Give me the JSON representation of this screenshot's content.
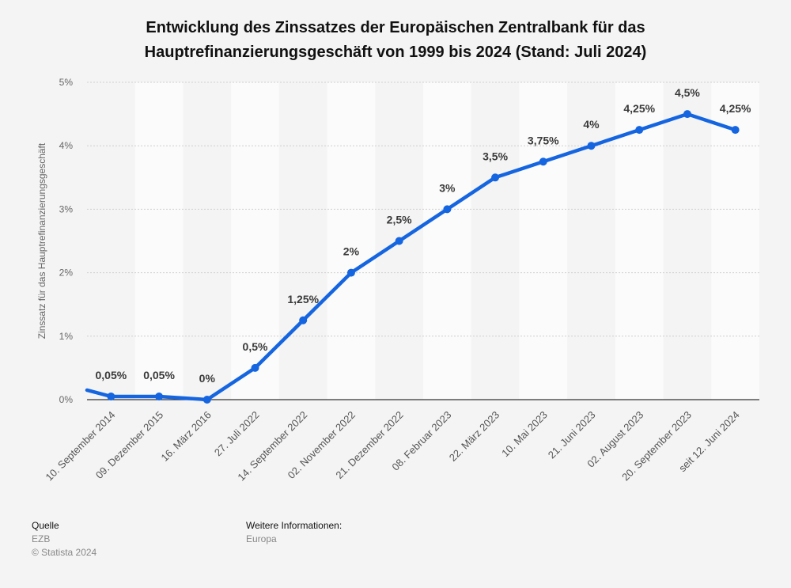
{
  "title_line1": "Entwicklung des Zinssatzes der Europäischen Zentralbank für das",
  "title_line2": "Hauptrefinanzierungsgeschäft von 1999 bis 2024 (Stand: Juli 2024)",
  "footer": {
    "source_label": "Quelle",
    "source_value": "EZB",
    "copyright": "© Statista 2024",
    "info_label": "Weitere Informationen:",
    "info_value": "Europa"
  },
  "colors": {
    "line": "#1565e0",
    "label": "#3a3a3a",
    "axis": "#999999",
    "band": "#fbfbfb"
  },
  "chart_data": {
    "type": "line",
    "title": "Entwicklung des Zinssatzes der Europäischen Zentralbank für das Hauptrefinanzierungsgeschäft von 1999 bis 2024 (Stand: Juli 2024)",
    "xlabel": "",
    "ylabel": "Zinssatz für das Hauptrefinanzierungsgeschäft",
    "ylim": [
      0,
      5
    ],
    "yticks": [
      0,
      1,
      2,
      3,
      4,
      5
    ],
    "ytick_labels": [
      "0%",
      "1%",
      "2%",
      "3%",
      "4%",
      "5%"
    ],
    "grid": true,
    "categories": [
      "10. September 2014",
      "09. Dezember 2015",
      "16. März 2016",
      "27. Juli 2022",
      "14. September 2022",
      "02. November 2022",
      "21. Dezember 2022",
      "08. Februar 2023",
      "22. März 2023",
      "10. Mai 2023",
      "21. Juni 2023",
      "02. August 2023",
      "20. September 2023",
      "seit 12. Juni 2024"
    ],
    "series": [
      {
        "name": "Zinssatz",
        "values": [
          0.05,
          0.05,
          0,
          0.5,
          1.25,
          2,
          2.5,
          3,
          3.5,
          3.75,
          4,
          4.25,
          4.5,
          4.25
        ],
        "labels": [
          "0,05%",
          "0,05%",
          "0%",
          "0,5%",
          "1,25%",
          "2%",
          "2,5%",
          "3%",
          "3,5%",
          "3,75%",
          "4%",
          "4,25%",
          "4,5%",
          "4,25%"
        ],
        "previous_value": 0.15
      }
    ]
  }
}
